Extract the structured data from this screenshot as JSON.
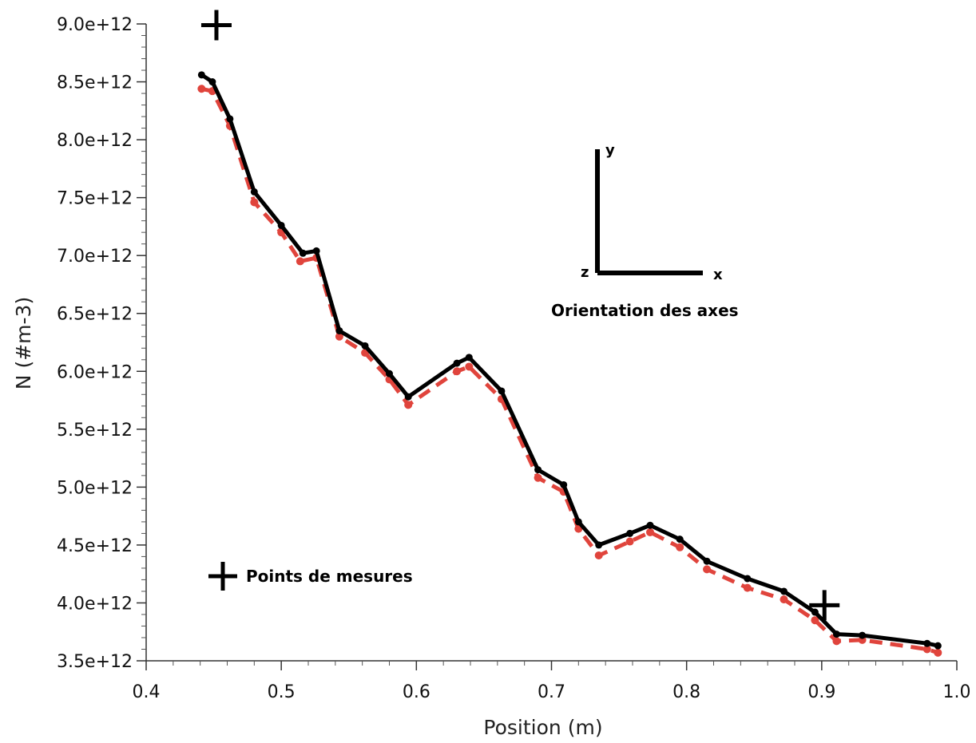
{
  "chart_data": {
    "type": "line",
    "xlabel": "Position (m)",
    "ylabel": "N (#m-3)",
    "xlim": [
      0.4,
      1.0
    ],
    "ylim": [
      3500000000000.0,
      9000000000000.0
    ],
    "x_ticks": [
      "0.4",
      "0.5",
      "0.6",
      "0.7",
      "0.8",
      "0.9",
      "1.0"
    ],
    "y_ticks": [
      "3.5e+12",
      "4.0e+12",
      "4.5e+12",
      "5.0e+12",
      "5.5e+12",
      "6.0e+12",
      "6.5e+12",
      "7.0e+12",
      "7.5e+12",
      "8.0e+12",
      "8.5e+12",
      "9.0e+12"
    ],
    "series": [
      {
        "style": "solid",
        "color": "#000000",
        "x": [
          0.441,
          0.449,
          0.462,
          0.48,
          0.5,
          0.516,
          0.526,
          0.543,
          0.562,
          0.58,
          0.594,
          0.63,
          0.639,
          0.663,
          0.69,
          0.709,
          0.72,
          0.735,
          0.758,
          0.773,
          0.795,
          0.815,
          0.845,
          0.872,
          0.895,
          0.911,
          0.93,
          0.978,
          0.986
        ],
        "y": [
          8560000000000.0,
          8500000000000.0,
          8180000000000.0,
          7550000000000.0,
          7260000000000.0,
          7020000000000.0,
          7040000000000.0,
          6350000000000.0,
          6220000000000.0,
          5980000000000.0,
          5780000000000.0,
          6070000000000.0,
          6120000000000.0,
          5830000000000.0,
          5150000000000.0,
          5020000000000.0,
          4700000000000.0,
          4500000000000.0,
          4600000000000.0,
          4670000000000.0,
          4550000000000.0,
          4360000000000.0,
          4210000000000.0,
          4100000000000.0,
          3920000000000.0,
          3730000000000.0,
          3720000000000.0,
          3650000000000.0,
          3630000000000.0
        ]
      },
      {
        "style": "dashed",
        "color": "#e0443c",
        "x": [
          0.441,
          0.449,
          0.462,
          0.48,
          0.5,
          0.514,
          0.526,
          0.543,
          0.562,
          0.58,
          0.594,
          0.63,
          0.639,
          0.663,
          0.69,
          0.709,
          0.72,
          0.735,
          0.758,
          0.773,
          0.795,
          0.815,
          0.845,
          0.872,
          0.895,
          0.911,
          0.93,
          0.978,
          0.986
        ],
        "y": [
          8440000000000.0,
          8420000000000.0,
          8120000000000.0,
          7460000000000.0,
          7200000000000.0,
          6950000000000.0,
          6980000000000.0,
          6300000000000.0,
          6160000000000.0,
          5930000000000.0,
          5710000000000.0,
          6000000000000.0,
          6040000000000.0,
          5760000000000.0,
          5080000000000.0,
          4960000000000.0,
          4640000000000.0,
          4410000000000.0,
          4530000000000.0,
          4610000000000.0,
          4480000000000.0,
          4290000000000.0,
          4130000000000.0,
          4030000000000.0,
          3850000000000.0,
          3670000000000.0,
          3680000000000.0,
          3600000000000.0,
          3570000000000.0
        ]
      }
    ],
    "measure_points": [
      {
        "x": 0.452,
        "y": 8990000000000.0
      },
      {
        "x": 0.902,
        "y": 3980000000000.0
      }
    ],
    "annotations": {
      "legend_label": "Points de mesures",
      "orientation_label": "Orientation des axes",
      "axis_y": "y",
      "axis_x": "x",
      "axis_z": "z"
    }
  }
}
